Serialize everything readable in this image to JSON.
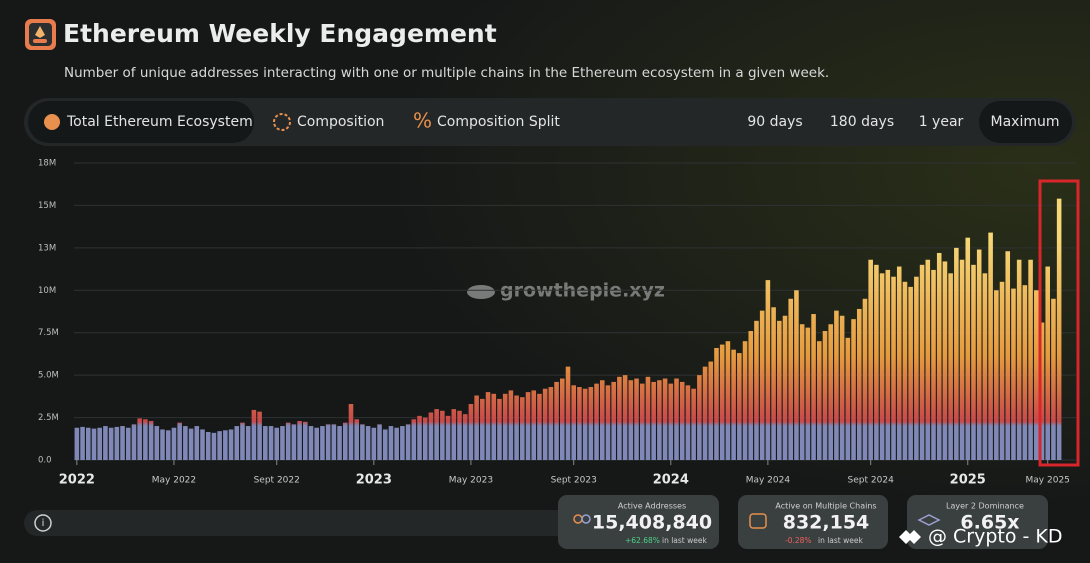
{
  "chart_data": {
    "type": "bar",
    "title": "Ethereum Weekly Engagement",
    "subtitle": "Number of unique addresses interacting with one or multiple chains in the Ethereum ecosystem in a given week.",
    "categories": [
      "2022",
      null,
      null,
      null,
      null,
      null,
      null,
      null,
      null,
      null,
      null,
      null,
      null,
      null,
      null,
      null,
      null,
      "May 2022",
      null,
      null,
      null,
      null,
      null,
      null,
      null,
      null,
      null,
      null,
      null,
      null,
      null,
      null,
      null,
      null,
      null,
      "Sept 2022",
      null,
      null,
      null,
      null,
      null,
      null,
      null,
      null,
      null,
      null,
      null,
      null,
      null,
      null,
      null,
      null,
      "2023",
      null,
      null,
      null,
      null,
      null,
      null,
      null,
      null,
      null,
      null,
      null,
      null,
      null,
      null,
      null,
      null,
      "May 2023",
      null,
      null,
      null,
      null,
      null,
      null,
      null,
      null,
      null,
      null,
      null,
      null,
      null,
      null,
      null,
      null,
      null,
      "Sept 2023",
      null,
      null,
      null,
      null,
      null,
      null,
      null,
      null,
      null,
      null,
      null,
      null,
      null,
      null,
      null,
      null,
      "2024",
      null,
      null,
      null,
      null,
      null,
      null,
      null,
      null,
      null,
      null,
      null,
      null,
      null,
      null,
      null,
      null,
      "May 2024",
      null,
      null,
      null,
      null,
      null,
      null,
      null,
      null,
      null,
      null,
      null,
      null,
      null,
      null,
      null,
      null,
      null,
      "Sept 2024",
      null,
      null,
      null,
      null,
      null,
      null,
      null,
      null,
      null,
      null,
      null,
      null,
      null,
      null,
      null,
      null,
      "2025",
      null,
      null,
      null,
      null,
      null,
      null,
      null,
      null,
      null,
      null,
      null,
      null,
      null,
      "May 2025",
      null,
      null
    ],
    "values": [
      1.9,
      1.95,
      1.9,
      1.85,
      1.9,
      2.0,
      1.9,
      1.95,
      2.0,
      1.9,
      2.1,
      2.45,
      2.4,
      2.3,
      2.0,
      1.8,
      1.75,
      1.9,
      2.2,
      2.0,
      1.85,
      2.0,
      1.8,
      1.65,
      1.6,
      1.7,
      1.75,
      1.8,
      2.0,
      2.2,
      2.0,
      2.95,
      2.85,
      2.0,
      2.0,
      1.9,
      2.0,
      2.2,
      2.1,
      2.3,
      2.25,
      2.0,
      1.9,
      2.0,
      2.1,
      2.1,
      2.0,
      2.2,
      3.3,
      2.4,
      2.1,
      2.0,
      1.9,
      2.1,
      1.8,
      2.0,
      1.9,
      2.0,
      2.1,
      2.4,
      2.6,
      2.5,
      2.8,
      3.0,
      2.9,
      2.6,
      3.0,
      2.9,
      2.7,
      3.3,
      3.8,
      3.6,
      4.0,
      3.9,
      3.6,
      3.9,
      4.1,
      3.8,
      3.7,
      4.0,
      4.1,
      3.9,
      4.2,
      4.3,
      4.6,
      4.8,
      5.5,
      4.4,
      4.3,
      4.2,
      4.3,
      4.5,
      4.7,
      4.4,
      4.6,
      4.9,
      5.0,
      4.7,
      4.8,
      4.5,
      4.9,
      4.6,
      4.7,
      4.8,
      4.5,
      4.8,
      4.6,
      4.4,
      4.2,
      5.0,
      5.5,
      5.8,
      6.6,
      6.8,
      7.0,
      6.5,
      6.3,
      7.0,
      7.6,
      8.2,
      8.8,
      10.6,
      9.0,
      8.2,
      8.5,
      9.5,
      10.0,
      8.0,
      7.8,
      8.6,
      7.0,
      7.6,
      8.0,
      8.8,
      8.5,
      7.2,
      8.3,
      8.9,
      9.5,
      11.8,
      11.5,
      11.0,
      11.2,
      10.8,
      11.4,
      10.5,
      10.2,
      10.8,
      11.5,
      11.8,
      11.2,
      12.2,
      11.7,
      11.0,
      12.5,
      11.8,
      13.1,
      11.5,
      12.4,
      11.0,
      13.4,
      10.0,
      10.5,
      12.3,
      10.1,
      11.8,
      10.3,
      11.8,
      10.0,
      8.1,
      11.4,
      9.5,
      15.4
    ],
    "colors": [
      "#7f88b6",
      "#7f88b6",
      "#c8494a",
      "#e69a3f",
      "#f6d878"
    ],
    "ylim": [
      0,
      17.5
    ],
    "yticks": [
      {
        "value": 0,
        "label": "0.0"
      },
      {
        "value": 2.5,
        "label": "2.5M"
      },
      {
        "value": 5,
        "label": "5.0M"
      },
      {
        "value": 7.5,
        "label": "7.5M"
      },
      {
        "value": 10,
        "label": "10M"
      },
      {
        "value": 12.5,
        "label": "13M"
      },
      {
        "value": 15,
        "label": "15M"
      },
      {
        "value": 17.5,
        "label": "18M"
      }
    ],
    "grid": true
  },
  "tabs": [
    "Total Ethereum Ecosystem",
    "Composition",
    "Composition Split"
  ],
  "ranges": [
    "90 days",
    "180 days",
    "1 year",
    "Maximum"
  ],
  "watermark": "growthepie.xyz",
  "stats": [
    {
      "label": "Active Addresses",
      "value": "15,408,840",
      "change": "+62.68%",
      "note": "in last week"
    },
    {
      "label": "Active on Multiple Chains",
      "value": "832,154",
      "change": "-0.28%",
      "note": "in last week"
    },
    {
      "label": "Layer 2 Dominance",
      "value": "6.65x"
    }
  ],
  "credit": "@ Crypto - KD"
}
